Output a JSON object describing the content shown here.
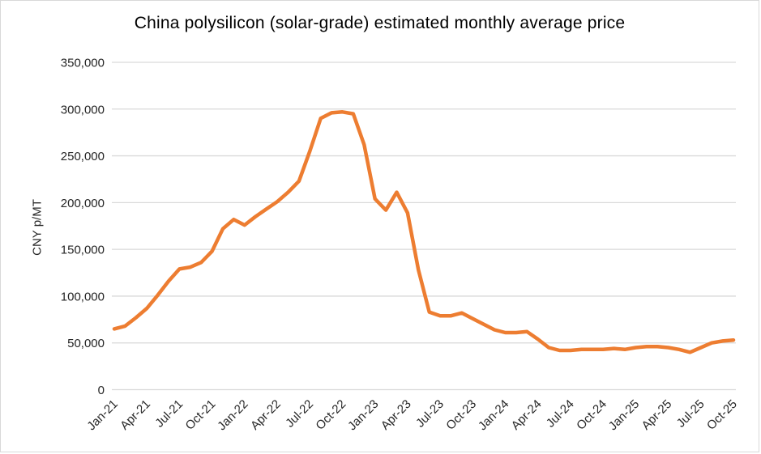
{
  "title": "China polysilicon (solar-grade) estimated monthly average price",
  "y_axis_title": "CNY p/MT",
  "colors": {
    "line": "#ED7D31",
    "gridline": "#D9D9D9",
    "tick_text": "#262626",
    "title_text": "#000000",
    "frame_border": "#D9D9D9",
    "background": "#FFFFFF"
  },
  "chart_data": {
    "type": "line",
    "title": "China polysilicon (solar-grade) estimated monthly average price",
    "xlabel": "",
    "ylabel": "CNY p/MT",
    "ylim": [
      0,
      350000
    ],
    "y_tick_step": 50000,
    "y_tick_labels": [
      "0",
      "50,000",
      "100,000",
      "150,000",
      "200,000",
      "250,000",
      "300,000",
      "350,000"
    ],
    "grid": "horizontal",
    "legend": "none",
    "x_tick_interval": 3,
    "x_tick_labels": [
      "Jan-21",
      "Apr-21",
      "Jul-21",
      "Oct-21",
      "Jan-22",
      "Apr-22",
      "Jul-22",
      "Oct-22",
      "Jan-23",
      "Apr-23",
      "Jul-23",
      "Oct-23",
      "Jan-24",
      "Apr-24",
      "Jul-24",
      "Oct-24",
      "Jan-25",
      "Apr-25",
      "Jul-25",
      "Oct-25"
    ],
    "x": [
      "Jan-21",
      "Feb-21",
      "Mar-21",
      "Apr-21",
      "May-21",
      "Jun-21",
      "Jul-21",
      "Aug-21",
      "Sep-21",
      "Oct-21",
      "Nov-21",
      "Dec-21",
      "Jan-22",
      "Feb-22",
      "Mar-22",
      "Apr-22",
      "May-22",
      "Jun-22",
      "Jul-22",
      "Aug-22",
      "Sep-22",
      "Oct-22",
      "Nov-22",
      "Dec-22",
      "Jan-23",
      "Feb-23",
      "Mar-23",
      "Apr-23",
      "May-23",
      "Jun-23",
      "Jul-23",
      "Aug-23",
      "Sep-23",
      "Oct-23",
      "Nov-23",
      "Dec-23",
      "Jan-24",
      "Feb-24",
      "Mar-24",
      "Apr-24",
      "May-24",
      "Jun-24",
      "Jul-24",
      "Aug-24",
      "Sep-24",
      "Oct-24",
      "Nov-24",
      "Dec-24",
      "Jan-25",
      "Feb-25",
      "Mar-25",
      "Apr-25",
      "May-25",
      "Jun-25",
      "Jul-25",
      "Aug-25",
      "Sep-25",
      "Oct-25"
    ],
    "series": [
      {
        "name": "Estimated monthly average price",
        "values": [
          65000,
          68000,
          77000,
          87000,
          101000,
          116000,
          129000,
          131000,
          136000,
          148000,
          172000,
          182000,
          176000,
          185000,
          193000,
          201000,
          211000,
          223000,
          255000,
          290000,
          296000,
          297000,
          295000,
          262000,
          204000,
          192000,
          211000,
          189000,
          128000,
          83000,
          79000,
          79000,
          82000,
          76000,
          70000,
          64000,
          61000,
          61000,
          62000,
          54000,
          45000,
          42000,
          42000,
          43000,
          43000,
          43000,
          44000,
          43000,
          45000,
          46000,
          46000,
          45000,
          43000,
          40000,
          45000,
          50000,
          52000,
          53000
        ]
      }
    ]
  }
}
